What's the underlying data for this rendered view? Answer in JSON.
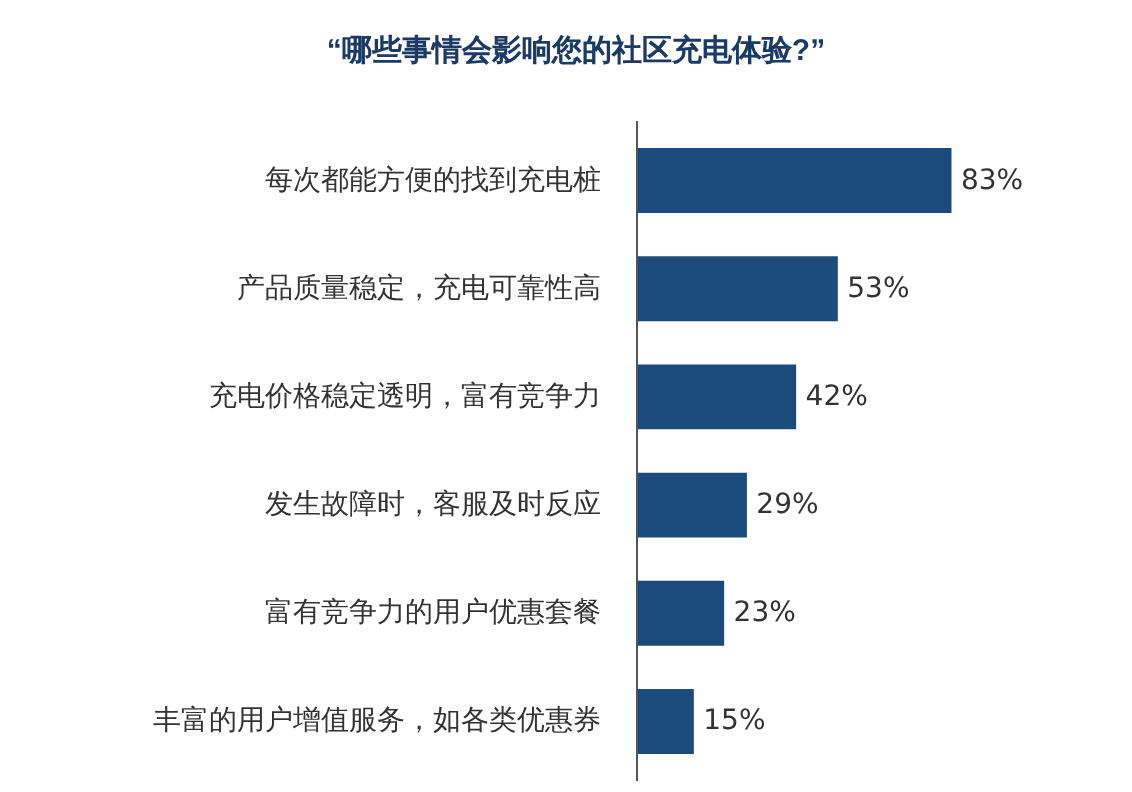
{
  "chart_data": {
    "type": "bar",
    "orientation": "horizontal",
    "title": "“哪些事情会影响您的社区充电体验?”",
    "categories": [
      "每次都能方便的找到充电桩",
      "产品质量稳定，充电可靠性高",
      "充电价格稳定透明，富有竞争力",
      "发生故障时，客服及时反应",
      "富有竞争力的用户优惠套餐",
      "丰富的用户增值服务，如各类优惠券"
    ],
    "values": [
      83,
      53,
      42,
      29,
      23,
      15
    ],
    "value_labels": [
      "83%",
      "53%",
      "42%",
      "29%",
      "23%",
      "15%"
    ],
    "color": "#1b4a7c",
    "grid": false
  }
}
